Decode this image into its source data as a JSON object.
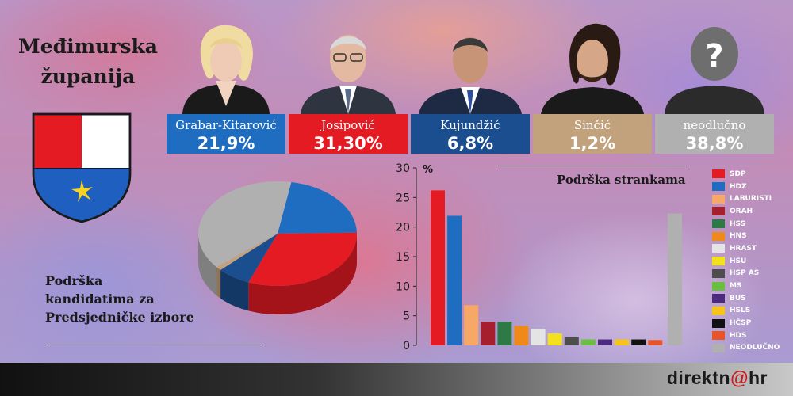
{
  "region": {
    "line1": "Međimurska",
    "line2": "županija"
  },
  "colors": {
    "red": "#e41b23",
    "blue": "#1f6dc0",
    "navy": "#1b4e8e",
    "tan": "#c2a27d",
    "gray": "#b0b0b0"
  },
  "candidates": [
    {
      "name": "Grabar-Kitarović",
      "percent": "21,9%",
      "color": "#1f6dc0"
    },
    {
      "name": "Josipović",
      "percent": "31,30%",
      "color": "#e41b23"
    },
    {
      "name": "Kujundžić",
      "percent": "6,8%",
      "color": "#1b4e8e"
    },
    {
      "name": "Sinčić",
      "percent": "1,2%",
      "color": "#c2a27d"
    },
    {
      "name": "neodlučno",
      "percent": "38,8%",
      "color": "#b0b0b0",
      "portrait_glyph": "?"
    }
  ],
  "labels": {
    "candidate_support_line1": "Podrška",
    "candidate_support_line2": "kandidatima za",
    "candidate_support_line3": "Predsjedničke izbore",
    "party_support": "Podrška strankama"
  },
  "logo": {
    "prefix": "direktn",
    "at": "@",
    "suffix": "hr"
  },
  "chart_data": [
    {
      "type": "pie",
      "slices": [
        {
          "name": "Grabar-Kitarović",
          "value": 21.9,
          "color": "#1f6dc0"
        },
        {
          "name": "Josipović",
          "value": 31.3,
          "color": "#e41b23"
        },
        {
          "name": "Kujundžić",
          "value": 6.8,
          "color": "#1b4e8e"
        },
        {
          "name": "Sinčić",
          "value": 1.2,
          "color": "#c2a27d"
        },
        {
          "name": "neodlučno",
          "value": 38.8,
          "color": "#b0b0b0"
        }
      ]
    },
    {
      "type": "bar",
      "ylabel": "%",
      "ylim": [
        0,
        30
      ],
      "yticks": [
        0,
        5,
        10,
        15,
        20,
        25,
        30
      ],
      "categories": [
        "SDP",
        "HDZ",
        "LABURISTI",
        "ORAH",
        "HSS",
        "HNS",
        "HRAST",
        "HSU",
        "HSP AS",
        "MS",
        "BUS",
        "HSLS",
        "HČSP",
        "HDS",
        "NEODLUČNO"
      ],
      "values": [
        26.2,
        21.9,
        6.8,
        4.0,
        4.0,
        3.3,
        2.8,
        2.0,
        1.4,
        1.0,
        1.0,
        1.0,
        1.0,
        0.9,
        22.3
      ],
      "colors": [
        "#e41b23",
        "#1f6dc0",
        "#f7a766",
        "#a51f2c",
        "#2d7a46",
        "#ef8a1a",
        "#e4e4e4",
        "#f4e11e",
        "#4d4d4d",
        "#6bbf3f",
        "#4b2a7d",
        "#f7c51a",
        "#111111",
        "#e6542a",
        "#b0b0b0"
      ],
      "legend_position": "right"
    }
  ]
}
